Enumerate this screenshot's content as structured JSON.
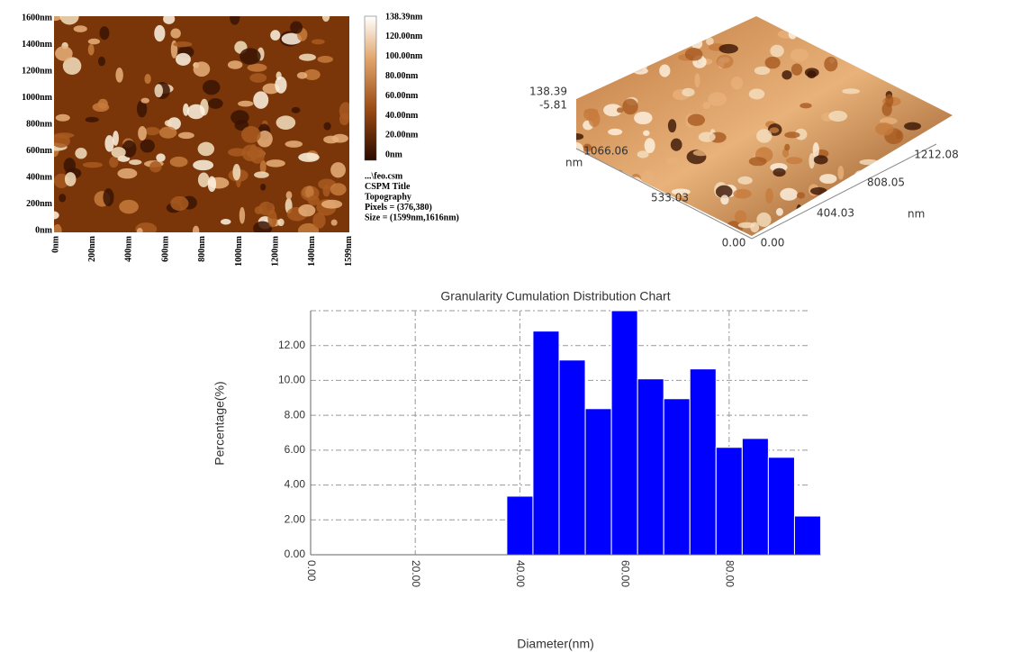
{
  "afm_2d": {
    "y_labels": [
      "1600nm",
      "1400nm",
      "1200nm",
      "1000nm",
      "800nm",
      "600nm",
      "400nm",
      "200nm",
      "0nm"
    ],
    "x_labels": [
      "0nm",
      "200nm",
      "400nm",
      "600nm",
      "800nm",
      "1000nm",
      "1200nm",
      "1400nm",
      "1599nm"
    ],
    "colorbar_labels": [
      "138.39nm",
      "120.00nm",
      "100.00nm",
      "80.00nm",
      "60.00nm",
      "40.00nm",
      "20.00nm",
      "0nm"
    ],
    "info": [
      "...\\feo.csm",
      "CSPM Title",
      "Topography",
      "Pixels = (376,380)",
      "Size = (1599nm,1616nm)"
    ]
  },
  "afm_3d": {
    "z_max": "138.39",
    "z_min": "-5.81",
    "y_unit": "nm",
    "y_labels": [
      "1066.06",
      "533.03",
      "0.00"
    ],
    "x_labels": [
      "0.00",
      "404.03",
      "808.05",
      "1212.08"
    ],
    "x_unit": "nm"
  },
  "chart_data": {
    "type": "histogram",
    "title": "Granularity Cumulation Distribution  Chart",
    "x_label": "Diameter(nm)",
    "y_label": "Percentage(%)",
    "bins": [
      37.5,
      42.5,
      47.5,
      52.5,
      57.5,
      62.5,
      67.5,
      72.5,
      77.5,
      82.5,
      87.5,
      92.5,
      97.5
    ],
    "values": [
      3.36,
      12.83,
      11.17,
      8.38,
      14.0,
      10.09,
      8.95,
      10.66,
      6.16,
      6.67,
      5.59,
      2.22
    ],
    "color": "#0000ff",
    "xlim": [
      0,
      97.5
    ],
    "ylim": [
      0,
      14
    ],
    "xticks": [
      {
        "value": 0,
        "label": "0.00"
      },
      {
        "value": 20,
        "label": "20.00"
      },
      {
        "value": 40,
        "label": "40.00"
      },
      {
        "value": 60,
        "label": "60.00"
      },
      {
        "value": 80,
        "label": "80.00"
      }
    ],
    "yticks": [
      {
        "value": 0,
        "label": "0.00"
      },
      {
        "value": 2,
        "label": "2.00"
      },
      {
        "value": 4,
        "label": "4.00"
      },
      {
        "value": 6,
        "label": "6.00"
      },
      {
        "value": 8,
        "label": "8.00"
      },
      {
        "value": 10,
        "label": "10.00"
      },
      {
        "value": 12,
        "label": "12.00"
      }
    ],
    "grid": true
  }
}
